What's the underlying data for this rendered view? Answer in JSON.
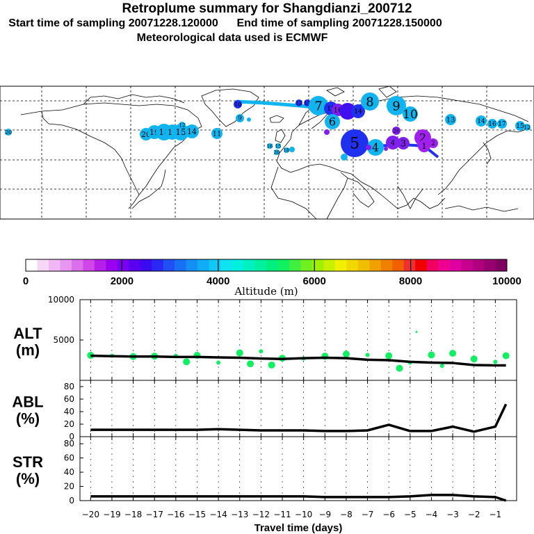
{
  "header": {
    "title": "Retroplume summary for Shangdianzi_200712",
    "start_label": "Start time of sampling 20071228.120000",
    "end_label": "End time of sampling 20071228.150000",
    "met_label": "Meteorological data used is ECMWF"
  },
  "colorbar": {
    "title": "Altitude (m)",
    "tick_labels": [
      "0",
      "2000",
      "4000",
      "6000",
      "8000",
      "10000"
    ],
    "colors": [
      "#ffffff",
      "#f7d7f7",
      "#efb7f3",
      "#e797f0",
      "#dc6fec",
      "#cf47e8",
      "#b51fe8",
      "#9b00f0",
      "#7a00f0",
      "#5a00f0",
      "#3c0af0",
      "#2a28f5",
      "#1f4ff5",
      "#1870f5",
      "#138ff5",
      "#10acf5",
      "#0fc8f5",
      "#0fe3f0",
      "#00f0e0",
      "#00f0c0",
      "#00f0a0",
      "#00f080",
      "#10f060",
      "#40f040",
      "#70f020",
      "#a0f000",
      "#c8f000",
      "#f0f000",
      "#f0d800",
      "#f0c000",
      "#f0a000",
      "#f08000",
      "#f06000",
      "#f03030",
      "#f00000",
      "#f00060",
      "#f00090",
      "#e000a0",
      "#c80090",
      "#b00080",
      "#980070",
      "#800060"
    ]
  },
  "map": {
    "grid": "dashed lat/lon graticule",
    "plume_labels": [
      "20",
      "19",
      "18",
      "16",
      "15",
      "14",
      "11",
      "9",
      "12",
      "13",
      "7",
      "6",
      "8",
      "9",
      "10",
      "5",
      "4",
      "3",
      "2",
      "1",
      "17"
    ]
  },
  "chart_data": [
    {
      "type": "line",
      "name": "ALT",
      "ylabel": "ALT\n(m)",
      "ylabel_lines": [
        "ALT",
        "(m)"
      ],
      "ylim": [
        0,
        10000
      ],
      "yticks": [
        "10000",
        "5000"
      ],
      "x": [
        -20,
        -19,
        -18,
        -17,
        -16,
        -15,
        -14,
        -13,
        -12,
        -11,
        -10,
        -9,
        -8,
        -7,
        -6,
        -5,
        -4,
        -3,
        -2,
        -1,
        -0.5
      ],
      "series": [
        {
          "name": "mean altitude",
          "values": [
            3050,
            3000,
            2950,
            2950,
            2900,
            2900,
            2850,
            2800,
            2700,
            2650,
            2750,
            2800,
            2750,
            2550,
            2500,
            2300,
            2200,
            2150,
            1900,
            1850,
            1850
          ]
        },
        {
          "name": "plume altitudes (scatter)",
          "x": [
            -20,
            -19,
            -18,
            -17,
            -16,
            -15.5,
            -15,
            -14,
            -13,
            -12.5,
            -12,
            -11.5,
            -11,
            -10,
            -9,
            -8,
            -7,
            -6,
            -5.5,
            -5,
            -4.7,
            -4,
            -3.5,
            -3,
            -2,
            -1,
            -0.5
          ],
          "values": [
            3100,
            3050,
            2950,
            3000,
            3050,
            2300,
            3100,
            2200,
            3400,
            2050,
            3600,
            1900,
            2750,
            2700,
            3000,
            3250,
            3150,
            3050,
            1500,
            2200,
            6000,
            3150,
            1800,
            3350,
            2650,
            2300,
            3050
          ]
        }
      ]
    },
    {
      "type": "line",
      "name": "ABL",
      "ylabel_lines": [
        "ABL",
        "(%)"
      ],
      "ylim": [
        0,
        90
      ],
      "yticks": [
        "0",
        "20",
        "40",
        "60",
        "80"
      ],
      "x": [
        -20,
        -19,
        -18,
        -17,
        -16,
        -15,
        -14,
        -13,
        -12,
        -11,
        -10,
        -9,
        -8,
        -7,
        -6,
        -5,
        -4,
        -3,
        -2,
        -1,
        -0.5
      ],
      "series": [
        {
          "name": "ABL fraction",
          "values": [
            11,
            11,
            11,
            11,
            11,
            11,
            12,
            11,
            10,
            10,
            10,
            9,
            9,
            10,
            19,
            9,
            9,
            16,
            8,
            16,
            52
          ]
        }
      ]
    },
    {
      "type": "line",
      "name": "STR",
      "ylabel_lines": [
        "STR",
        "(%)"
      ],
      "ylim": [
        0,
        90
      ],
      "yticks": [
        "0",
        "20",
        "40",
        "60",
        "80"
      ],
      "x": [
        -20,
        -19,
        -18,
        -17,
        -16,
        -15,
        -14,
        -13,
        -12,
        -11,
        -10,
        -9,
        -8,
        -7,
        -6,
        -5,
        -4,
        -3,
        -2,
        -1,
        -0.5
      ],
      "series": [
        {
          "name": "STR fraction",
          "values": [
            6,
            6,
            6,
            6,
            6,
            6,
            6,
            6,
            6,
            6,
            6,
            5,
            5,
            5,
            5,
            6,
            8,
            8,
            6,
            5,
            0
          ]
        }
      ]
    }
  ],
  "xaxis": {
    "label": "Travel time (days)",
    "tick_labels": [
      "−20",
      "−19",
      "−18",
      "−17",
      "−16",
      "−15",
      "−14",
      "−13",
      "−12",
      "−11",
      "−10",
      "−9",
      "−8",
      "−7",
      "−6",
      "−5",
      "−4",
      "−3",
      "−2",
      "−1"
    ]
  }
}
